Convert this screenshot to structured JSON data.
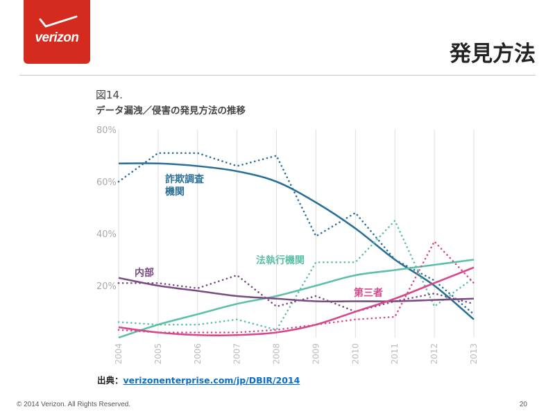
{
  "brand": {
    "logo_text": "verizon",
    "color": "#d52b1e"
  },
  "header": {
    "title": "発見方法"
  },
  "figure": {
    "number": "図14.",
    "caption": "データ漏洩／侵害の発見方法の推移"
  },
  "source": {
    "label": "出典：",
    "link_text": "verizonenterprise.com/jp/DBIR/2014"
  },
  "footer": {
    "copyright": "© 2014 Verizon. All Rights Reserved.",
    "page_number": "20"
  },
  "chart_data": {
    "type": "line",
    "categories": [
      "2004",
      "2005",
      "2006",
      "2007",
      "2008",
      "2009",
      "2010",
      "2011",
      "2012",
      "2013"
    ],
    "y_ticks": [
      "80%",
      "60%",
      "40%",
      "20%"
    ],
    "y_tick_values": [
      80,
      60,
      40,
      20
    ],
    "ylim": [
      0,
      80
    ],
    "grid": "vertical",
    "series": [
      {
        "name": "詐欺調査機関",
        "label_lines": [
          "詐欺調査",
          "機関"
        ],
        "color": "#2a6f97",
        "actual": [
          60,
          71,
          71,
          66,
          70,
          39,
          48,
          30,
          22,
          9
        ],
        "trend": [
          67,
          67,
          66,
          64,
          60,
          52,
          42,
          30,
          20,
          7
        ]
      },
      {
        "name": "法執行機関",
        "label_lines": [
          "法執行機関"
        ],
        "color": "#5cbfa8",
        "actual": [
          6,
          5,
          5,
          7,
          3,
          29,
          29,
          45,
          12,
          23
        ],
        "trend": [
          0,
          5,
          9,
          13,
          16,
          20,
          24,
          26,
          28,
          30
        ]
      },
      {
        "name": "内部",
        "label_lines": [
          "内部"
        ],
        "color": "#7a4a82",
        "actual": [
          21,
          21,
          19,
          24,
          12,
          16,
          10,
          14,
          17,
          13
        ],
        "trend": [
          23,
          20,
          18,
          16,
          15,
          14,
          14,
          14,
          14.5,
          15
        ]
      },
      {
        "name": "第三者",
        "label_lines": [
          "第三者"
        ],
        "color": "#d6488b",
        "actual": [
          3,
          2,
          2,
          2,
          3,
          5,
          7,
          8,
          37,
          21
        ],
        "trend": [
          4,
          2,
          1,
          1,
          2,
          5,
          10,
          15,
          21,
          27
        ]
      }
    ]
  }
}
